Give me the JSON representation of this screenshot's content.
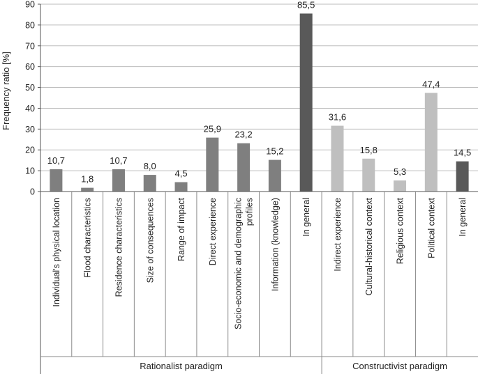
{
  "chart_data": {
    "type": "bar",
    "ylabel": "Frequency ratio [%]",
    "ylim": [
      0,
      90
    ],
    "yticks": [
      0,
      10,
      20,
      30,
      40,
      50,
      60,
      70,
      80,
      90
    ],
    "grid": true,
    "legend": "none",
    "categories": [
      "Individual's physical location",
      "Flood characteristics",
      "Residence characteristics",
      "Size of consequences",
      "Range of impact",
      "Direct experience",
      "Socio-economic and demographic profiles",
      "Information (knowledge)",
      "In general",
      "Indirect experience",
      "Cultural-historical context",
      "Religious context",
      "Political context",
      "In general"
    ],
    "values": [
      10.7,
      1.8,
      10.7,
      8.0,
      4.5,
      25.9,
      23.2,
      15.2,
      85.5,
      31.6,
      15.8,
      5.3,
      47.4,
      14.5
    ],
    "value_labels": [
      "10,7",
      "1,8",
      "10,7",
      "8,0",
      "4,5",
      "25,9",
      "23,2",
      "15,2",
      "85,5",
      "31,6",
      "15,8",
      "5,3",
      "47,4",
      "14,5"
    ],
    "label_lines": [
      [
        "Individual's physical location"
      ],
      [
        "Flood characteristics"
      ],
      [
        "Residence characteristics"
      ],
      [
        "Size of consequences"
      ],
      [
        "Range of impact"
      ],
      [
        "Direct experience"
      ],
      [
        "Socio-economic and demographic",
        "profiles"
      ],
      [
        "Information (knowledge)"
      ],
      [
        "In general"
      ],
      [
        "Indirect experience"
      ],
      [
        "Cultural-historical context"
      ],
      [
        "Religious context"
      ],
      [
        "Political context"
      ],
      [
        "In general"
      ]
    ],
    "bar_colors": [
      "#7f7f7f",
      "#7f7f7f",
      "#7f7f7f",
      "#7f7f7f",
      "#7f7f7f",
      "#7f7f7f",
      "#7f7f7f",
      "#7f7f7f",
      "#595959",
      "#bfbfbf",
      "#bfbfbf",
      "#bfbfbf",
      "#bfbfbf",
      "#595959"
    ],
    "groups": [
      {
        "name": "Rationalist paradigm",
        "from": 0,
        "to": 8
      },
      {
        "name": "Constructivist paradigm",
        "from": 9,
        "to": 13
      }
    ]
  }
}
